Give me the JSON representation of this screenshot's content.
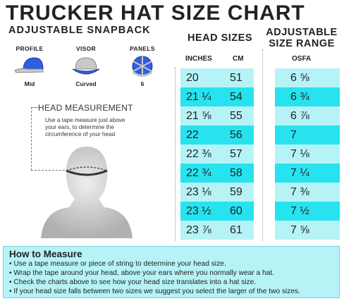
{
  "title": "TRUCKER HAT SIZE CHART",
  "subtitle": "ADJUSTABLE SNAPBACK",
  "specs": [
    {
      "label": "PROFILE",
      "value": "Mid",
      "icon": "cap-profile-icon"
    },
    {
      "label": "VISOR",
      "value": "Curved",
      "icon": "cap-visor-icon"
    },
    {
      "label": "PANELS",
      "value": "6",
      "icon": "cap-panels-icon"
    }
  ],
  "head_sizes": {
    "label": "HEAD SIZES",
    "col_inches": "INCHES",
    "col_cm": "CM",
    "rows": [
      {
        "in": "20",
        "cm": "51"
      },
      {
        "in": "21 ¼",
        "cm": "54"
      },
      {
        "in": "21 ⅝",
        "cm": "55"
      },
      {
        "in": "22",
        "cm": "56"
      },
      {
        "in": "22 ⅜",
        "cm": "57"
      },
      {
        "in": "22 ¾",
        "cm": "58"
      },
      {
        "in": "23 ⅛",
        "cm": "59"
      },
      {
        "in": "23 ½",
        "cm": "60"
      },
      {
        "in": "23 ⅞",
        "cm": "61"
      }
    ]
  },
  "adjustable": {
    "label_line1": "ADJUSTABLE",
    "label_line2": "SIZE RANGE",
    "col": "OSFA",
    "rows": [
      "6 ⅝",
      "6 ¾",
      "6 ⅞",
      "7",
      "7 ⅛",
      "7 ¼",
      "7 ⅜",
      "7 ½",
      "7 ⅝"
    ]
  },
  "measurement": {
    "label": "HEAD MEASUREMENT",
    "text": "Use a tape measure just above your ears, to determine the circumference of your head"
  },
  "how_to": {
    "title": "How to Measure",
    "items": [
      "Use a tape measure or piece of string to determine your head size.",
      "Wrap the tape around your head, above your ears where you normally wear a hat.",
      "Check the charts above to see how your head size translates into a hat size.",
      "If your head size falls between two sizes we suggest you select the larger of the two sizes."
    ]
  },
  "colors": {
    "row_light": "#b6f3f7",
    "row_dark": "#27e3ef",
    "cap_blue": "#2f5fe0",
    "cap_grey": "#c9c9c9"
  }
}
